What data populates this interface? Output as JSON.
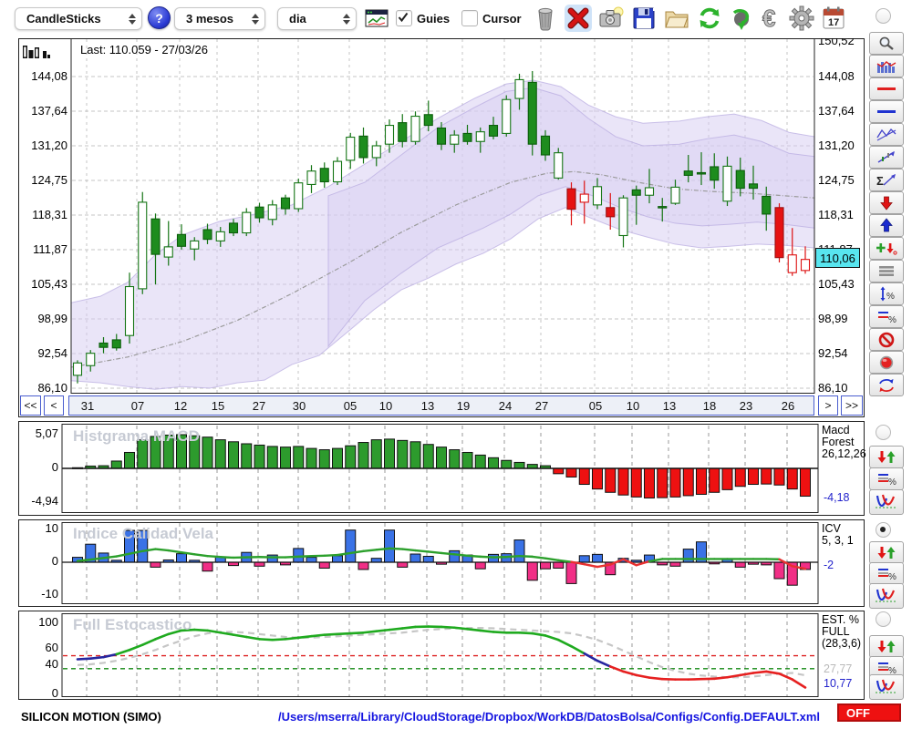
{
  "toolbar": {
    "chart_type": "CandleSticks",
    "help": "?",
    "timeframe": "3 mesos",
    "period": "dia",
    "guies_label": "Guies",
    "cursor_label": "Cursor",
    "calendar_day": "17"
  },
  "main_chart": {
    "last_label": "Last: 110.059 - 27/03/26",
    "price_tag": "110,06",
    "y_top_label": "150,52",
    "y_axis": [
      [
        "144,08",
        84
      ],
      [
        "137,64",
        122
      ],
      [
        "131,20",
        160
      ],
      [
        "124,75",
        198
      ],
      [
        "118,31",
        236
      ],
      [
        "111,87",
        274
      ],
      [
        "105,43",
        312
      ],
      [
        "98,99",
        350
      ],
      [
        "92,54",
        388
      ],
      [
        "86,10",
        426
      ]
    ],
    "nav": {
      "first": "<<",
      "prev": "<",
      "next": ">",
      "last": ">>"
    }
  },
  "macd_panel": {
    "watermark": "Histgrama MACD",
    "y_labels": [
      [
        "5,07",
        477
      ],
      [
        "0",
        514
      ],
      [
        "-4,94",
        551
      ]
    ],
    "name_lines": [
      "Macd",
      "Forest",
      "26,12,26"
    ],
    "value": "-4,18"
  },
  "icv_panel": {
    "watermark": "Indice Calidad Vela",
    "y_labels": [
      [
        "10",
        581
      ],
      [
        "0",
        617
      ],
      [
        "-10",
        653
      ]
    ],
    "name_lines": [
      "ICV",
      "5, 3, 1"
    ],
    "value": "-2"
  },
  "stoch_panel": {
    "watermark": "Full Estocastico",
    "y_labels": [
      [
        "100",
        684
      ],
      [
        "60",
        712
      ],
      [
        "40",
        730
      ],
      [
        "0",
        762
      ]
    ],
    "name_lines": [
      "EST. %",
      "FULL",
      "(28,3,6)"
    ],
    "value_d": "27,77",
    "value_k": "10,77"
  },
  "statusbar": {
    "symbol": "SILICON MOTION (SIMO)",
    "config_path": "/Users/mserra/Library/CloudStorage/Dropbox/WorkDB/DatosBolsa/Configs/Config.DEFAULT.xml",
    "off_label": "OFF"
  },
  "colors": {
    "candle_up_stroke": "#157515",
    "candle_up_fill": "#ffffff",
    "candle_upfilled_fill": "#1e8c1e",
    "candle_down_fill": "#e61212",
    "candle_down_stroke": "#dd1111",
    "band_fill": "#d6ccf1",
    "band_stroke": "#b7a9e0",
    "mid_line": "#9a9a9a",
    "macd_pos": "#2d9b2d",
    "macd_neg": "#ee1111",
    "icv_pos": "#3a72e6",
    "icv_neg": "#f12f86",
    "icv_line_pos": "#2ca02c",
    "icv_line_neg": "#e83030",
    "stoch_green": "#1faa1f",
    "stoch_blue": "#26269f",
    "stoch_red": "#e62020",
    "stoch_d": "#c6c6c6",
    "thr_red": "#dd2222",
    "thr_green": "#118811",
    "grid": "#c4c4c4",
    "tag_bg": "#58e5ef",
    "off_bg": "#ee1111"
  },
  "chart_data": {
    "type": "candlestick+indicators",
    "title": "SILICON MOTION (SIMO) - 3 mesos / dia",
    "x_ticks": [
      [
        "31",
        95
      ],
      [
        "07",
        150
      ],
      [
        "12",
        197
      ],
      [
        "15",
        238
      ],
      [
        "27",
        283
      ],
      [
        "30",
        327
      ],
      [
        "05",
        383
      ],
      [
        "10",
        422
      ],
      [
        "13",
        468
      ],
      [
        "19",
        507
      ],
      [
        "24",
        553
      ],
      [
        "27",
        593
      ],
      [
        "05",
        652
      ],
      [
        "10",
        693
      ],
      [
        "13",
        733
      ],
      [
        "18",
        777
      ],
      [
        "23",
        817
      ],
      [
        "26",
        863
      ]
    ],
    "price_axis": {
      "min": 86.1,
      "max": 144.08,
      "top_extra": 150.52
    },
    "candles": [
      [
        "gh",
        88.5,
        91.3,
        87.0,
        90.8
      ],
      [
        "gh",
        90.3,
        93.2,
        89.2,
        92.6
      ],
      [
        "gf",
        94.5,
        95.6,
        92.6,
        93.7
      ],
      [
        "gf",
        95.1,
        96.2,
        93.1,
        93.6
      ],
      [
        "gh",
        95.9,
        107.6,
        94.4,
        105.0
      ],
      [
        "gh",
        104.6,
        122.6,
        103.6,
        120.7
      ],
      [
        "gf",
        117.6,
        118.6,
        105.4,
        111.0
      ],
      [
        "gh",
        110.5,
        117.2,
        108.9,
        112.4
      ],
      [
        "gf",
        114.7,
        116.6,
        111.9,
        112.5
      ],
      [
        "gh",
        112.0,
        114.2,
        109.9,
        113.5
      ],
      [
        "gf",
        115.6,
        116.7,
        112.9,
        113.8
      ],
      [
        "gh",
        113.5,
        116.1,
        112.4,
        115.2
      ],
      [
        "gf",
        116.8,
        117.6,
        114.4,
        115.0
      ],
      [
        "gh",
        115.0,
        119.6,
        114.4,
        118.8
      ],
      [
        "gf",
        119.8,
        120.6,
        116.9,
        117.8
      ],
      [
        "gh",
        117.5,
        121.1,
        116.4,
        120.2
      ],
      [
        "gf",
        121.5,
        122.1,
        118.4,
        119.5
      ],
      [
        "gh",
        119.5,
        125.1,
        118.9,
        124.3
      ],
      [
        "gh",
        124.0,
        127.6,
        122.4,
        126.5
      ],
      [
        "gf",
        127.0,
        128.1,
        123.4,
        124.5
      ],
      [
        "gh",
        124.5,
        129.1,
        123.9,
        128.3
      ],
      [
        "gh",
        128.5,
        133.6,
        126.9,
        132.8
      ],
      [
        "gf",
        133.0,
        134.6,
        127.9,
        129.0
      ],
      [
        "gh",
        129.0,
        132.1,
        127.4,
        131.2
      ],
      [
        "gh",
        131.5,
        136.1,
        129.9,
        135.0
      ],
      [
        "gf",
        135.5,
        137.1,
        130.9,
        132.0
      ],
      [
        "gh",
        132.0,
        137.6,
        131.4,
        136.7
      ],
      [
        "gf",
        137.0,
        139.6,
        133.9,
        135.0
      ],
      [
        "gf",
        134.5,
        135.6,
        130.4,
        131.5
      ],
      [
        "gh",
        131.5,
        134.1,
        129.9,
        133.2
      ],
      [
        "gf",
        133.5,
        135.1,
        131.4,
        132.0
      ],
      [
        "gh",
        132.0,
        134.6,
        129.9,
        133.8
      ],
      [
        "gf",
        135.0,
        136.6,
        132.4,
        133.0
      ],
      [
        "gh",
        133.5,
        140.6,
        132.9,
        139.8
      ],
      [
        "gh",
        140.0,
        144.6,
        137.9,
        143.5
      ],
      [
        "gf",
        143.0,
        145.1,
        129.4,
        131.5
      ],
      [
        "gf",
        133.0,
        134.1,
        128.4,
        129.5
      ],
      [
        "gh",
        125.2,
        130.8,
        124.9,
        129.9
      ],
      [
        "rf",
        123.2,
        124.4,
        116.4,
        119.4
      ],
      [
        "rh",
        120.7,
        124.7,
        116.7,
        122.2
      ],
      [
        "gh",
        120.2,
        125.2,
        119.4,
        123.6
      ],
      [
        "rf",
        119.7,
        122.4,
        115.6,
        118.0
      ],
      [
        "gh",
        114.5,
        122.0,
        112.3,
        121.5
      ],
      [
        "gf",
        123.0,
        123.8,
        116.5,
        122.0
      ],
      [
        "gh",
        122.0,
        126.9,
        120.5,
        123.4
      ],
      [
        "gf",
        119.9,
        121.5,
        117.1,
        119.8
      ],
      [
        "gh",
        120.5,
        124.9,
        120.2,
        123.5
      ],
      [
        "gf",
        126.5,
        129.5,
        124.4,
        125.7
      ],
      [
        "gf",
        126.2,
        130.0,
        123.9,
        126.0
      ],
      [
        "gf",
        127.3,
        129.8,
        123.2,
        124.8
      ],
      [
        "gh",
        120.9,
        129.2,
        120.0,
        127.4
      ],
      [
        "gf",
        126.6,
        129.0,
        121.8,
        123.3
      ],
      [
        "gf",
        124.1,
        127.5,
        121.2,
        123.3
      ],
      [
        "gf",
        121.8,
        123.6,
        115.4,
        118.5
      ],
      [
        "rf",
        119.7,
        120.5,
        109.5,
        110.4
      ],
      [
        "rh",
        107.6,
        115.9,
        107.0,
        110.9
      ],
      [
        "rh",
        108.0,
        112.5,
        107.4,
        110.06
      ]
    ],
    "bollinger": {
      "outer_upper": [
        [
          78,
          102.0
        ],
        [
          110,
          103.2
        ],
        [
          140,
          105.8
        ],
        [
          170,
          110.9
        ],
        [
          200,
          114.6
        ],
        [
          240,
          117.1
        ],
        [
          280,
          118.5
        ],
        [
          320,
          120.2
        ],
        [
          360,
          123.6
        ],
        [
          400,
          127.8
        ],
        [
          440,
          132.0
        ],
        [
          480,
          136.3
        ],
        [
          520,
          140.0
        ],
        [
          555,
          142.7
        ],
        [
          585,
          143.4
        ],
        [
          615,
          142.2
        ],
        [
          645,
          138.8
        ],
        [
          675,
          136.6
        ],
        [
          705,
          135.4
        ],
        [
          745,
          135.8
        ],
        [
          775,
          136.6
        ],
        [
          805,
          137.1
        ],
        [
          835,
          135.9
        ],
        [
          865,
          133.7
        ],
        [
          893,
          132.9
        ]
      ],
      "outer_lower": [
        [
          78,
          87.5
        ],
        [
          110,
          87.1
        ],
        [
          140,
          86.4
        ],
        [
          170,
          85.9
        ],
        [
          200,
          86.4
        ],
        [
          230,
          86.1
        ],
        [
          260,
          87.1
        ],
        [
          290,
          87.6
        ],
        [
          320,
          90.5
        ],
        [
          350,
          92.2
        ],
        [
          380,
          96.4
        ],
        [
          410,
          100.7
        ],
        [
          440,
          104.4
        ],
        [
          470,
          106.6
        ],
        [
          500,
          109.2
        ],
        [
          530,
          111.2
        ],
        [
          560,
          113.9
        ],
        [
          590,
          117.6
        ],
        [
          620,
          119.7
        ],
        [
          650,
          117.6
        ],
        [
          680,
          115.6
        ],
        [
          710,
          114.2
        ],
        [
          740,
          112.9
        ],
        [
          770,
          112.2
        ],
        [
          800,
          112.5
        ],
        [
          830,
          112.9
        ],
        [
          860,
          112.7
        ],
        [
          893,
          112.2
        ]
      ],
      "inner_upper": [
        [
          360,
          121.9
        ],
        [
          400,
          124.4
        ],
        [
          440,
          129.5
        ],
        [
          480,
          134.6
        ],
        [
          520,
          138.3
        ],
        [
          555,
          141.3
        ],
        [
          585,
          142.0
        ],
        [
          615,
          140.5
        ],
        [
          645,
          136.3
        ],
        [
          675,
          132.9
        ],
        [
          705,
          131.2
        ],
        [
          745,
          131.5
        ],
        [
          775,
          132.5
        ],
        [
          805,
          133.2
        ],
        [
          835,
          132.0
        ],
        [
          865,
          129.8
        ],
        [
          893,
          129.2
        ]
      ],
      "inner_lower": [
        [
          360,
          93.9
        ],
        [
          400,
          102.4
        ],
        [
          440,
          107.5
        ],
        [
          480,
          112.2
        ],
        [
          530,
          115.9
        ],
        [
          560,
          118.5
        ],
        [
          590,
          121.9
        ],
        [
          620,
          123.6
        ],
        [
          650,
          121.9
        ],
        [
          680,
          119.7
        ],
        [
          710,
          118.0
        ],
        [
          740,
          116.8
        ],
        [
          770,
          116.3
        ],
        [
          800,
          116.6
        ],
        [
          830,
          117.0
        ],
        [
          860,
          116.6
        ],
        [
          893,
          115.9
        ]
      ],
      "middle": [
        [
          78,
          90.0
        ],
        [
          140,
          91.9
        ],
        [
          200,
          94.8
        ],
        [
          260,
          98.7
        ],
        [
          320,
          103.7
        ],
        [
          380,
          109.2
        ],
        [
          440,
          115.1
        ],
        [
          500,
          120.2
        ],
        [
          560,
          124.4
        ],
        [
          600,
          126.1
        ],
        [
          630,
          126.4
        ],
        [
          660,
          125.8
        ],
        [
          700,
          124.4
        ],
        [
          740,
          123.2
        ],
        [
          780,
          122.7
        ],
        [
          820,
          122.4
        ],
        [
          860,
          121.9
        ],
        [
          893,
          121.5
        ]
      ]
    },
    "macd": {
      "ylim": [
        -4.94,
        5.07
      ],
      "last": -4.18,
      "params": "26,12,26",
      "values": [
        0.1,
        0.35,
        0.4,
        1.1,
        2.4,
        4.3,
        4.8,
        5.0,
        5.07,
        4.9,
        4.7,
        4.3,
        4.0,
        3.7,
        3.5,
        3.3,
        3.2,
        3.3,
        3.0,
        2.8,
        3.0,
        3.4,
        3.9,
        4.3,
        4.4,
        4.2,
        4.0,
        3.6,
        3.2,
        2.8,
        2.4,
        2.0,
        1.6,
        1.2,
        0.9,
        0.6,
        0.4,
        -0.8,
        -1.3,
        -2.4,
        -3.1,
        -3.6,
        -4.0,
        -4.3,
        -4.45,
        -4.4,
        -4.3,
        -4.1,
        -3.9,
        -3.6,
        -3.2,
        -2.7,
        -2.4,
        -2.35,
        -2.5,
        -3.1,
        -4.18
      ]
    },
    "icv": {
      "ylim": [
        -10,
        10
      ],
      "last": -2,
      "params": "5, 3, 1",
      "bars": [
        1.5,
        5.5,
        2.8,
        0.6,
        9.7,
        9.7,
        -1.5,
        0.7,
        2.6,
        0.6,
        -2.7,
        1.6,
        -1.0,
        3.0,
        -1.2,
        2.2,
        -0.8,
        4.2,
        1.5,
        -1.8,
        2.0,
        9.8,
        -2.2,
        1.2,
        9.8,
        -1.5,
        2.5,
        1.8,
        -0.6,
        3.5,
        2.2,
        -2.0,
        2.4,
        2.6,
        6.8,
        -5.5,
        -2.0,
        -1.8,
        -6.5,
        2.0,
        2.4,
        -3.8,
        1.2,
        0.6,
        2.2,
        -0.8,
        -1.2,
        4.0,
        6.2,
        -0.5,
        1.0,
        -1.5,
        -0.6,
        -0.8,
        -5.0,
        -7.0,
        -2.2
      ],
      "line": [
        0.4,
        0.8,
        1.3,
        1.8,
        2.6,
        3.4,
        4.0,
        3.6,
        3.0,
        2.4,
        1.9,
        1.6,
        1.4,
        1.5,
        1.6,
        1.5,
        1.5,
        1.7,
        1.9,
        2.0,
        2.2,
        2.8,
        3.4,
        3.8,
        4.2,
        4.0,
        3.6,
        3.2,
        2.8,
        2.4,
        2.0,
        1.7,
        1.5,
        1.6,
        1.9,
        1.7,
        1.2,
        0.6,
        0.1,
        -0.6,
        -1.4,
        -0.7,
        0.9,
        -0.9,
        0.3,
        1.0,
        1.0,
        1.0,
        1.0,
        1.0,
        1.0,
        1.0,
        1.0,
        1.0,
        0.9,
        -1.2,
        -2.0
      ]
    },
    "stochastic": {
      "ylim": [
        0,
        100
      ],
      "k_last": 10.77,
      "d_last": 27.77,
      "params": "(28,3,6)",
      "threshold_upper": 55,
      "threshold_lower": 37,
      "k": [
        50,
        51,
        53,
        57,
        63,
        70,
        78,
        85,
        90,
        91,
        90,
        87,
        84,
        81,
        78,
        77,
        78,
        80,
        82,
        84,
        85,
        86,
        87,
        89,
        91,
        93,
        95,
        95.5,
        95,
        94,
        92,
        90,
        88,
        87,
        87,
        86,
        83,
        77,
        68,
        58,
        48,
        40,
        33,
        28,
        24.5,
        22.5,
        22,
        22,
        22.5,
        23,
        25,
        28,
        31,
        33,
        30,
        22,
        10.77
      ],
      "d": [
        42,
        43,
        45,
        48,
        52,
        57,
        63,
        70,
        76,
        82,
        86,
        88,
        88,
        87,
        85,
        83,
        81,
        80,
        80,
        81,
        82,
        83,
        84,
        85,
        86,
        87,
        89,
        91,
        92,
        93,
        93.5,
        93.5,
        93,
        92,
        91,
        90,
        89,
        88,
        86,
        82,
        77,
        70,
        62,
        54,
        46,
        39,
        34,
        30,
        27.5,
        26,
        25,
        25,
        26,
        28,
        30,
        31,
        27.77
      ]
    }
  }
}
